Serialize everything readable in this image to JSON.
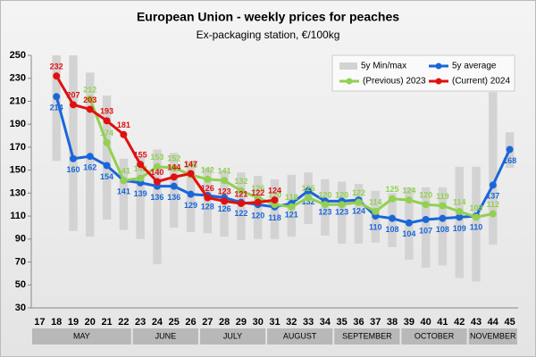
{
  "chart_data": {
    "type": "line",
    "title": "European Union - weekly prices for peaches",
    "subtitle": "Ex-packaging station, €/100kg",
    "categories": [
      17,
      18,
      19,
      20,
      21,
      22,
      23,
      24,
      25,
      26,
      27,
      28,
      29,
      30,
      31,
      32,
      33,
      34,
      35,
      36,
      37,
      38,
      39,
      40,
      41,
      42,
      43,
      44,
      45
    ],
    "ylim": [
      30,
      250
    ],
    "yticks": [
      30,
      50,
      70,
      90,
      110,
      130,
      150,
      170,
      190,
      210,
      230,
      250
    ],
    "grid": false,
    "legend": "top-right",
    "minmax": {
      "name": "5y Min/max",
      "color": "#d3d3d3",
      "low": [
        null,
        158,
        97,
        92,
        107,
        98,
        90,
        68,
        100,
        96,
        95,
        92,
        89,
        90,
        90,
        92,
        103,
        93,
        86,
        86,
        87,
        83,
        72,
        65,
        67,
        56,
        53,
        85,
        152
      ],
      "high": [
        null,
        250,
        250,
        235,
        215,
        160,
        162,
        168,
        165,
        158,
        152,
        150,
        148,
        145,
        142,
        146,
        148,
        142,
        140,
        138,
        132,
        130,
        135,
        135,
        135,
        153,
        153,
        218,
        183
      ]
    },
    "series": [
      {
        "name": "5y average",
        "color": "#1a66d9",
        "values": [
          null,
          214,
          160,
          162,
          154,
          141,
          139,
          136,
          136,
          129,
          128,
          126,
          122,
          120,
          118,
          121,
          132,
          123,
          123,
          124,
          110,
          108,
          104,
          107,
          108,
          109,
          110,
          137,
          168
        ]
      },
      {
        "name": "(Previous) 2023",
        "color": "#92d050",
        "values": [
          null,
          null,
          null,
          212,
          174,
          141,
          143,
          153,
          152,
          146,
          142,
          141,
          132,
          126,
          120,
          118,
          126,
          120,
          120,
          122,
          114,
          125,
          124,
          120,
          119,
          114,
          109,
          112,
          null
        ]
      },
      {
        "name": "(Current) 2024",
        "color": "#e01010",
        "values": [
          null,
          232,
          207,
          203,
          193,
          181,
          155,
          140,
          144,
          147,
          126,
          123,
          121,
          122,
          124,
          null,
          null,
          null,
          null,
          null,
          null,
          null,
          null,
          null,
          null,
          null,
          null,
          null,
          null
        ]
      }
    ],
    "months": [
      {
        "label": "MAY",
        "weeks": [
          17,
          22
        ]
      },
      {
        "label": "JUNE",
        "weeks": [
          23,
          26
        ]
      },
      {
        "label": "JULY",
        "weeks": [
          27,
          30
        ]
      },
      {
        "label": "AUGUST",
        "weeks": [
          31,
          34
        ]
      },
      {
        "label": "SEPTEMBER",
        "weeks": [
          35,
          38
        ]
      },
      {
        "label": "OCTOBER",
        "weeks": [
          39,
          42
        ]
      },
      {
        "label": "NOVEMBER",
        "weeks": [
          43,
          45
        ]
      }
    ]
  }
}
